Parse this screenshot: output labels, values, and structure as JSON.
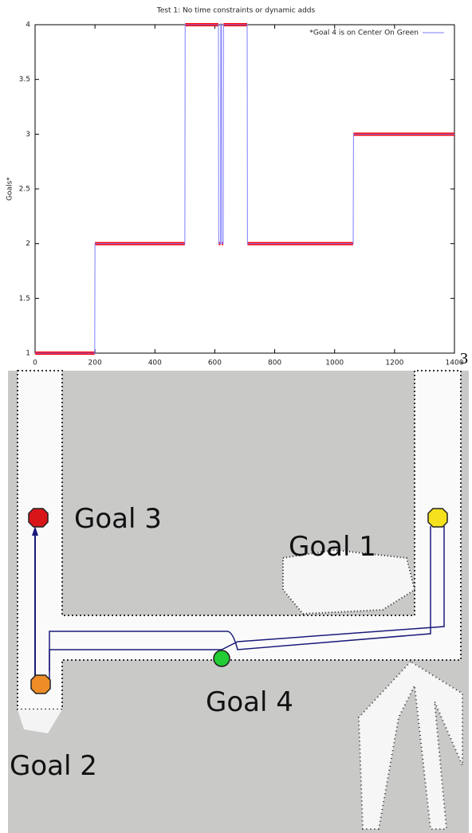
{
  "chart_data": {
    "type": "line",
    "title": "Test 1: No time constraints or dynamic adds",
    "y_label": "Goals*",
    "xlim": [
      0,
      1400
    ],
    "ylim": [
      1,
      4
    ],
    "xticks": [
      0,
      200,
      400,
      600,
      800,
      1000,
      1200,
      1400
    ],
    "yticks": [
      1,
      1.5,
      2,
      2.5,
      3,
      3.5,
      4
    ],
    "legend": "top-right",
    "x": [
      0,
      199,
      200,
      500,
      501,
      612,
      613,
      619,
      620,
      622,
      623,
      628,
      629,
      708,
      709,
      1062,
      1063,
      1400
    ],
    "series": [
      {
        "name": "*Goal 4 is on Center On Green",
        "color": "#7d7dff",
        "marker_color": "#ff0000",
        "values": [
          1,
          1,
          2,
          2,
          4,
          4,
          2,
          2,
          4,
          4,
          2,
          2,
          4,
          4,
          2,
          2,
          3,
          3
        ]
      }
    ]
  },
  "figure": {
    "stray_label": "3",
    "map_labels": [
      "Goal 3",
      "Goal 1",
      "Goal 4",
      "Goal 2"
    ]
  }
}
